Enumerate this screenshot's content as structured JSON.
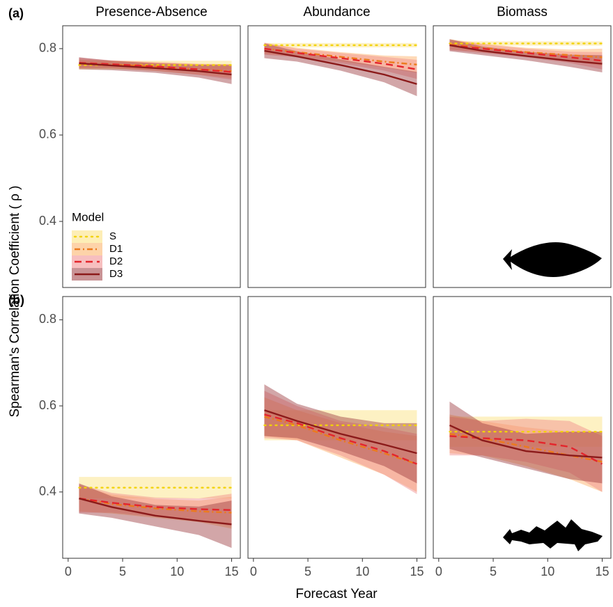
{
  "figure": {
    "panel_labels": [
      "(a)",
      "(b)"
    ],
    "ylabel": "Spearman's Correlation Coefficient ( ρ )",
    "xlabel": "Forecast Year",
    "legend": {
      "title": "Model",
      "corner": "bottom-left"
    },
    "models": [
      {
        "name": "S",
        "color": "#f2d20a",
        "band_color": "#fbe07a",
        "dash": "dotted"
      },
      {
        "name": "D1",
        "color": "#ec7a1c",
        "band_color": "#fcae62",
        "dash": "dotdash"
      },
      {
        "name": "D2",
        "color": "#e4252c",
        "band_color": "#f08a8a",
        "dash": "dashed"
      },
      {
        "name": "D3",
        "color": "#8b1a1a",
        "band_color": "#9c3a3e",
        "dash": "solid"
      }
    ]
  },
  "chart_data": [
    {
      "type": "line",
      "title": "Presence-Absence",
      "x": [
        1,
        4,
        8,
        12,
        15
      ],
      "xlim": [
        -0.5,
        15.8
      ],
      "ylim": [
        0.247,
        0.853
      ],
      "yticks": [
        {
          "value": 0.4,
          "label": "0.4"
        },
        {
          "value": 0.6,
          "label": "0.6"
        },
        {
          "value": 0.8,
          "label": "0.8"
        }
      ],
      "series": [
        {
          "values": [
            0.762,
            0.762,
            0.762,
            0.762,
            0.762
          ],
          "lower": [
            0.752,
            0.752,
            0.752,
            0.752,
            0.752
          ],
          "upper": [
            0.772,
            0.772,
            0.772,
            0.772,
            0.772
          ]
        },
        {
          "values": [
            0.765,
            0.763,
            0.758,
            0.752,
            0.748
          ],
          "lower": [
            0.755,
            0.754,
            0.748,
            0.74,
            0.732
          ],
          "upper": [
            0.775,
            0.772,
            0.768,
            0.764,
            0.764
          ]
        },
        {
          "values": [
            0.767,
            0.764,
            0.759,
            0.752,
            0.746
          ],
          "lower": [
            0.755,
            0.755,
            0.749,
            0.739,
            0.728
          ],
          "upper": [
            0.779,
            0.773,
            0.769,
            0.765,
            0.764
          ]
        },
        {
          "values": [
            0.766,
            0.761,
            0.755,
            0.748,
            0.74
          ],
          "lower": [
            0.752,
            0.75,
            0.744,
            0.733,
            0.718
          ],
          "upper": [
            0.78,
            0.772,
            0.766,
            0.763,
            0.762
          ]
        }
      ]
    },
    {
      "type": "line",
      "title": "Abundance",
      "x": [
        1,
        4,
        8,
        12,
        15
      ],
      "xlim": [
        -0.5,
        15.8
      ],
      "ylim": [
        0.247,
        0.853
      ],
      "series": [
        {
          "values": [
            0.808,
            0.808,
            0.808,
            0.808,
            0.808
          ],
          "lower": [
            0.803,
            0.803,
            0.803,
            0.803,
            0.803
          ],
          "upper": [
            0.813,
            0.813,
            0.813,
            0.813,
            0.813
          ]
        },
        {
          "values": [
            0.8,
            0.792,
            0.781,
            0.77,
            0.763
          ],
          "lower": [
            0.788,
            0.782,
            0.77,
            0.756,
            0.744
          ],
          "upper": [
            0.812,
            0.802,
            0.792,
            0.784,
            0.782
          ]
        },
        {
          "values": [
            0.8,
            0.79,
            0.778,
            0.765,
            0.752
          ],
          "lower": [
            0.786,
            0.78,
            0.766,
            0.749,
            0.73
          ],
          "upper": [
            0.814,
            0.8,
            0.79,
            0.781,
            0.774
          ]
        },
        {
          "values": [
            0.795,
            0.782,
            0.762,
            0.74,
            0.718
          ],
          "lower": [
            0.778,
            0.77,
            0.749,
            0.722,
            0.69
          ],
          "upper": [
            0.812,
            0.794,
            0.775,
            0.758,
            0.746
          ]
        }
      ]
    },
    {
      "type": "line",
      "title": "Biomass",
      "x": [
        1,
        4,
        8,
        12,
        15
      ],
      "xlim": [
        -0.5,
        15.8
      ],
      "ylim": [
        0.247,
        0.853
      ],
      "series": [
        {
          "values": [
            0.812,
            0.812,
            0.812,
            0.812,
            0.812
          ],
          "lower": [
            0.807,
            0.807,
            0.807,
            0.807,
            0.807
          ],
          "upper": [
            0.817,
            0.817,
            0.817,
            0.817,
            0.817
          ]
        },
        {
          "values": [
            0.81,
            0.802,
            0.792,
            0.785,
            0.78
          ],
          "lower": [
            0.798,
            0.792,
            0.782,
            0.772,
            0.76
          ],
          "upper": [
            0.822,
            0.812,
            0.802,
            0.798,
            0.8
          ]
        },
        {
          "values": [
            0.808,
            0.8,
            0.79,
            0.78,
            0.772
          ],
          "lower": [
            0.796,
            0.79,
            0.78,
            0.767,
            0.752
          ],
          "upper": [
            0.82,
            0.81,
            0.8,
            0.793,
            0.792
          ]
        },
        {
          "values": [
            0.808,
            0.795,
            0.783,
            0.772,
            0.765
          ],
          "lower": [
            0.794,
            0.785,
            0.773,
            0.758,
            0.745
          ],
          "upper": [
            0.822,
            0.805,
            0.793,
            0.786,
            0.785
          ]
        }
      ]
    },
    {
      "type": "line",
      "x": [
        1,
        4,
        8,
        12,
        15
      ],
      "xlim": [
        -0.5,
        15.8
      ],
      "ylim": [
        0.246,
        0.854
      ],
      "xticks": [
        0,
        5,
        10,
        15
      ],
      "yticks": [
        {
          "value": 0.4,
          "label": "0.4"
        },
        {
          "value": 0.6,
          "label": "0.6"
        },
        {
          "value": 0.8,
          "label": "0.8"
        }
      ],
      "series": [
        {
          "values": [
            0.41,
            0.41,
            0.41,
            0.41,
            0.41
          ],
          "lower": [
            0.385,
            0.385,
            0.385,
            0.385,
            0.385
          ],
          "upper": [
            0.435,
            0.435,
            0.435,
            0.435,
            0.435
          ]
        },
        {
          "values": [
            0.385,
            0.372,
            0.362,
            0.355,
            0.352
          ],
          "lower": [
            0.355,
            0.35,
            0.34,
            0.33,
            0.315
          ],
          "upper": [
            0.415,
            0.394,
            0.384,
            0.38,
            0.389
          ]
        },
        {
          "values": [
            0.385,
            0.375,
            0.365,
            0.36,
            0.358
          ],
          "lower": [
            0.352,
            0.352,
            0.343,
            0.335,
            0.32
          ],
          "upper": [
            0.418,
            0.398,
            0.387,
            0.385,
            0.396
          ]
        },
        {
          "values": [
            0.385,
            0.365,
            0.345,
            0.333,
            0.325
          ],
          "lower": [
            0.35,
            0.34,
            0.32,
            0.3,
            0.27
          ],
          "upper": [
            0.42,
            0.39,
            0.37,
            0.366,
            0.38
          ]
        }
      ]
    },
    {
      "type": "line",
      "x": [
        1,
        4,
        8,
        12,
        15
      ],
      "xlim": [
        -0.5,
        15.8
      ],
      "ylim": [
        0.246,
        0.854
      ],
      "xticks": [
        0,
        5,
        10,
        15
      ],
      "series": [
        {
          "values": [
            0.555,
            0.555,
            0.555,
            0.555,
            0.555
          ],
          "lower": [
            0.52,
            0.52,
            0.52,
            0.52,
            0.52
          ],
          "upper": [
            0.59,
            0.59,
            0.59,
            0.59,
            0.59
          ]
        },
        {
          "values": [
            0.575,
            0.555,
            0.52,
            0.49,
            0.465
          ],
          "lower": [
            0.53,
            0.52,
            0.48,
            0.44,
            0.4
          ],
          "upper": [
            0.62,
            0.59,
            0.56,
            0.54,
            0.53
          ]
        },
        {
          "values": [
            0.58,
            0.56,
            0.525,
            0.495,
            0.465
          ],
          "lower": [
            0.525,
            0.52,
            0.485,
            0.44,
            0.395
          ],
          "upper": [
            0.635,
            0.6,
            0.565,
            0.55,
            0.535
          ]
        },
        {
          "values": [
            0.59,
            0.565,
            0.535,
            0.51,
            0.49
          ],
          "lower": [
            0.53,
            0.525,
            0.495,
            0.46,
            0.42
          ],
          "upper": [
            0.65,
            0.605,
            0.575,
            0.56,
            0.56
          ]
        }
      ]
    },
    {
      "type": "line",
      "x": [
        1,
        4,
        8,
        12,
        15
      ],
      "xlim": [
        -0.5,
        15.8
      ],
      "ylim": [
        0.246,
        0.854
      ],
      "xticks": [
        0,
        5,
        10,
        15
      ],
      "series": [
        {
          "values": [
            0.54,
            0.54,
            0.54,
            0.54,
            0.54
          ],
          "lower": [
            0.505,
            0.505,
            0.505,
            0.505,
            0.505
          ],
          "upper": [
            0.575,
            0.575,
            0.575,
            0.575,
            0.575
          ]
        },
        {
          "values": [
            0.535,
            0.525,
            0.505,
            0.485,
            0.47
          ],
          "lower": [
            0.49,
            0.485,
            0.46,
            0.43,
            0.4
          ],
          "upper": [
            0.58,
            0.565,
            0.55,
            0.54,
            0.54
          ]
        },
        {
          "values": [
            0.53,
            0.525,
            0.52,
            0.505,
            0.465
          ],
          "lower": [
            0.485,
            0.485,
            0.47,
            0.445,
            0.4
          ],
          "upper": [
            0.575,
            0.565,
            0.57,
            0.565,
            0.53
          ]
        },
        {
          "values": [
            0.555,
            0.52,
            0.495,
            0.485,
            0.48
          ],
          "lower": [
            0.5,
            0.48,
            0.455,
            0.43,
            0.42
          ],
          "upper": [
            0.61,
            0.56,
            0.535,
            0.54,
            0.54
          ]
        }
      ]
    }
  ]
}
